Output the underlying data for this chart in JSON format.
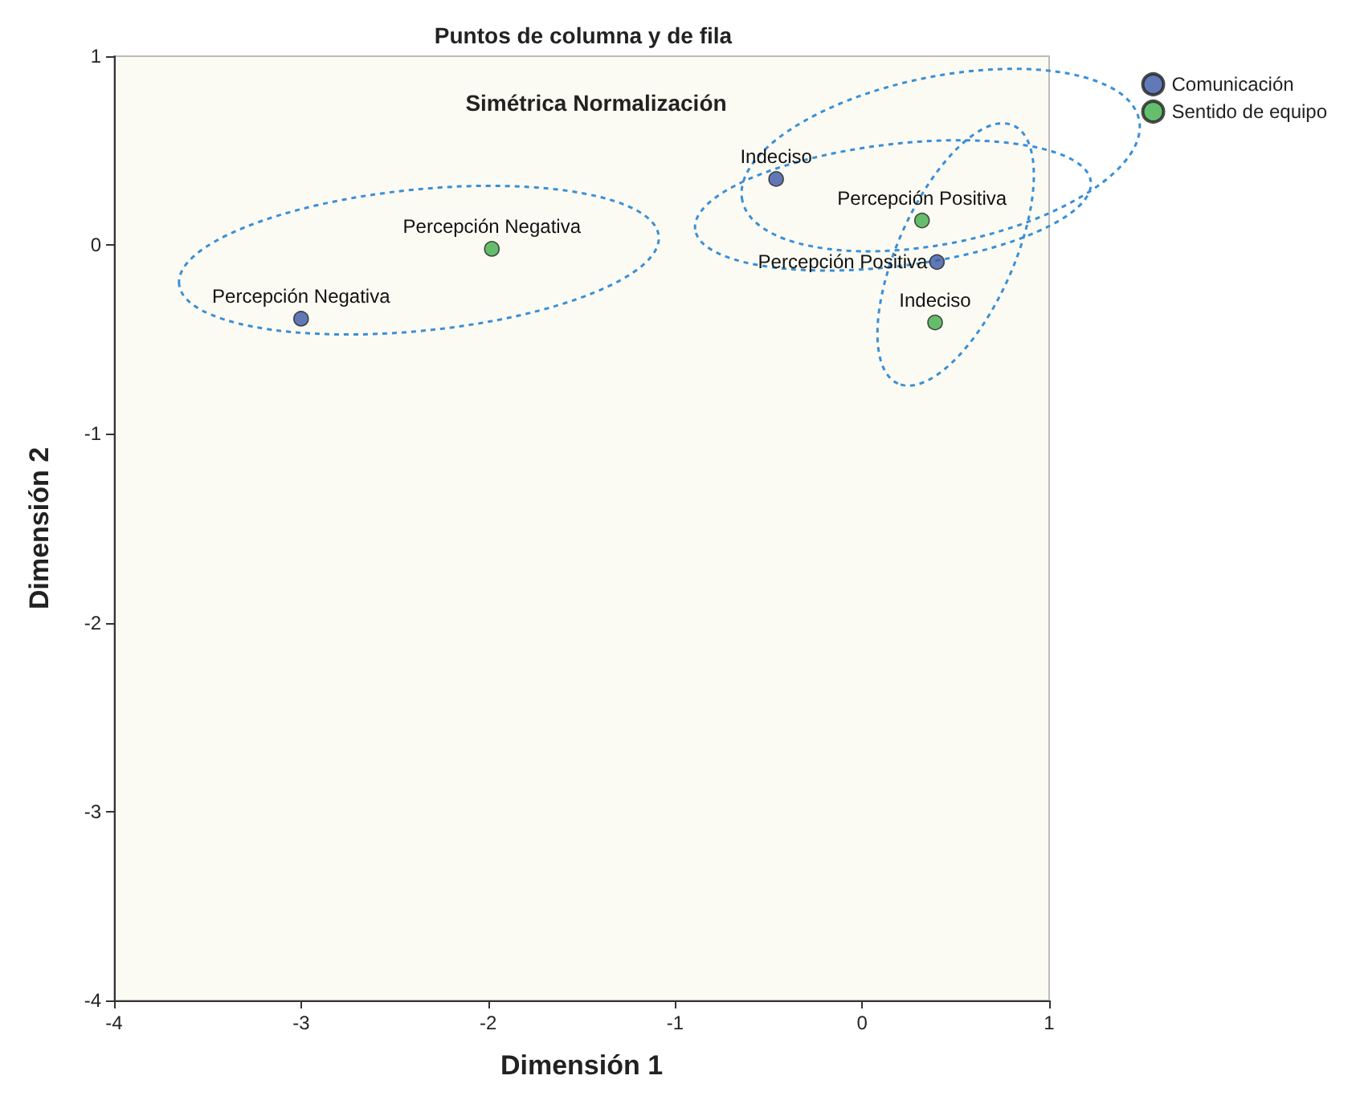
{
  "chart_data": {
    "type": "scatter",
    "title": "Puntos de columna y de fila",
    "subtitle": "Simétrica Normalización",
    "xlabel": "Dimensión 1",
    "ylabel": "Dimensión 2",
    "series": [
      {
        "name": "Comunicación",
        "color": "#3a58a4",
        "x": [
          -3.0,
          -0.46,
          0.4
        ],
        "values": [
          -0.39,
          0.35,
          -0.09
        ]
      },
      {
        "name": "Sentido de equipo",
        "color": "#3fae49",
        "x": [
          -1.98,
          0.32,
          0.39
        ],
        "values": [
          -0.02,
          0.13,
          -0.41
        ]
      }
    ],
    "annotations": [
      {
        "text": "Percepción Negativa",
        "x": -3.0,
        "y": -0.39
      },
      {
        "text": "Indeciso",
        "x": -0.46,
        "y": 0.35
      },
      {
        "text": "Percepción Positiva",
        "x": 0.4,
        "y": -0.09
      },
      {
        "text": "Percepción Negativa",
        "x": -1.98,
        "y": -0.02
      },
      {
        "text": "Percepción Positiva",
        "x": 0.32,
        "y": 0.13
      },
      {
        "text": "Indeciso",
        "x": 0.39,
        "y": -0.41
      }
    ],
    "xlim": [
      -4,
      1
    ],
    "xticks": [
      -4,
      -3,
      -2,
      -1,
      0,
      1
    ],
    "ylim": [
      -4,
      1
    ],
    "yticks": [
      -4,
      -3,
      -2,
      -1,
      0,
      1
    ],
    "grid": false,
    "legend": "top right",
    "marker": "circle"
  }
}
